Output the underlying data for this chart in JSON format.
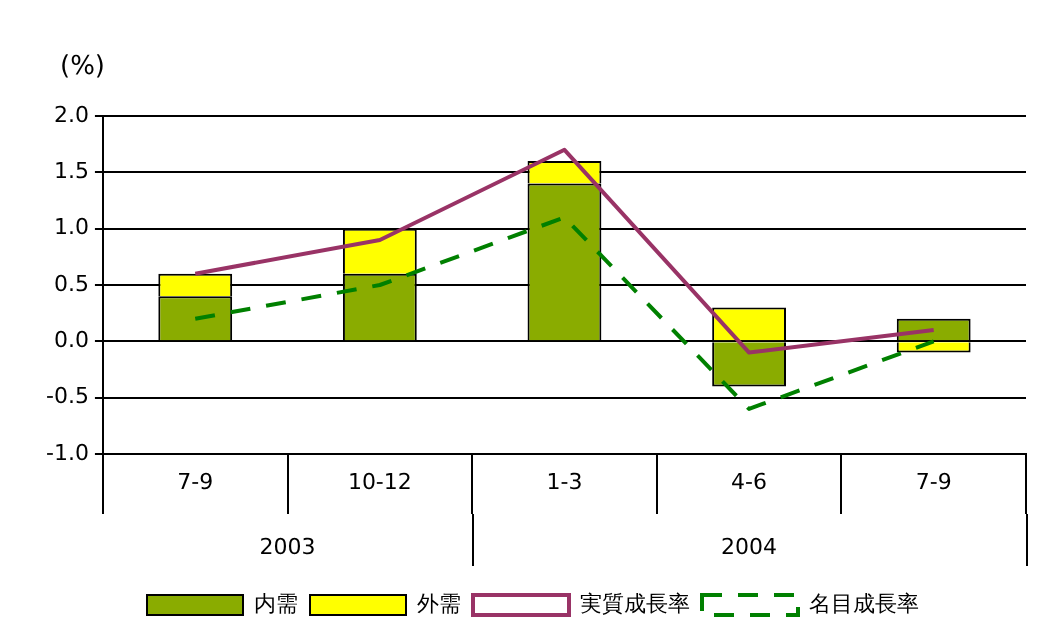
{
  "chart_data": {
    "type": "bar",
    "stacked": true,
    "ylabel": "(%)",
    "categories": [
      "7-9",
      "10-12",
      "1-3",
      "4-6",
      "7-9"
    ],
    "series": [
      {
        "name": "内需",
        "color": "#8aac00",
        "values": [
          0.4,
          0.6,
          1.4,
          -0.4,
          0.2
        ]
      },
      {
        "name": "外需",
        "color": "#ffff00",
        "values": [
          0.2,
          0.4,
          0.2,
          0.3,
          -0.1
        ]
      },
      {
        "name": "実質成長率",
        "type": "line",
        "color": "#993366",
        "line_style": "solid",
        "values": [
          0.6,
          0.9,
          1.7,
          -0.1,
          0.1
        ]
      },
      {
        "name": "名目成長率",
        "type": "line",
        "color": "#008000",
        "line_style": "dashed",
        "values": [
          0.2,
          0.5,
          1.1,
          -0.6,
          0.0
        ]
      }
    ],
    "ylim": [
      -1,
      2
    ],
    "yticks": [
      {
        "value": -1,
        "label": "-1.0"
      },
      {
        "value": -0.5,
        "label": "-0.5"
      },
      {
        "value": 0,
        "label": "0.0"
      },
      {
        "value": 0.5,
        "label": "0.5"
      },
      {
        "value": 1,
        "label": "1.0"
      },
      {
        "value": 1.5,
        "label": "1.5"
      },
      {
        "value": 2,
        "label": "2.0"
      }
    ],
    "annotations": [
      "2003",
      "2004"
    ],
    "grid": "y",
    "legend": "bottom",
    "marker": "none"
  }
}
